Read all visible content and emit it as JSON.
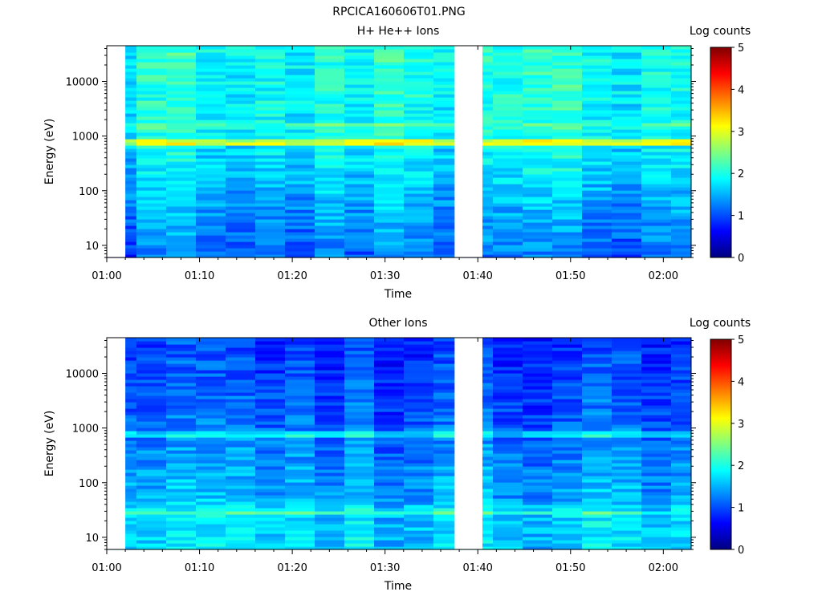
{
  "figure": {
    "title": "RPCICA160606T01.PNG"
  },
  "chart_data": [
    {
      "type": "heatmap",
      "title": "H+ He++ Ions",
      "xlabel": "Time",
      "ylabel": "Energy (eV)",
      "x_ticks": [
        "01:00",
        "01:10",
        "01:20",
        "01:30",
        "01:40",
        "01:50",
        "02:00"
      ],
      "y_ticks": [
        "10",
        "100",
        "1000",
        "10000"
      ],
      "y_scale": "log",
      "xlim": [
        "01:00",
        "02:03"
      ],
      "ylim": [
        6,
        45000
      ],
      "data_gaps": [
        [
          "01:00",
          "01:02"
        ],
        [
          "01:37.5",
          "01:40.5"
        ]
      ],
      "bands": [
        {
          "energy": 1550,
          "level": 2.3
        },
        {
          "energy": 750,
          "level": 3.1
        }
      ],
      "colorbar": {
        "label": "Log counts",
        "range": [
          0,
          5
        ],
        "ticks": [
          "0",
          "1",
          "2",
          "3",
          "4",
          "5"
        ],
        "colormap": "jet"
      }
    },
    {
      "type": "heatmap",
      "title": "Other Ions",
      "xlabel": "Time",
      "ylabel": "Energy (eV)",
      "x_ticks": [
        "01:00",
        "01:10",
        "01:20",
        "01:30",
        "01:40",
        "01:50",
        "02:00"
      ],
      "y_ticks": [
        "10",
        "100",
        "1000",
        "10000"
      ],
      "y_scale": "log",
      "xlim": [
        "01:00",
        "02:03"
      ],
      "ylim": [
        6,
        45000
      ],
      "data_gaps": [
        [
          "01:00",
          "01:02"
        ],
        [
          "01:37.5",
          "01:40.5"
        ]
      ],
      "bands": [
        {
          "energy": 750,
          "level": 1.9
        },
        {
          "energy": 28,
          "level": 2.1
        }
      ],
      "colorbar": {
        "label": "Log counts",
        "range": [
          0,
          5
        ],
        "ticks": [
          "0",
          "1",
          "2",
          "3",
          "4",
          "5"
        ],
        "colormap": "jet"
      }
    }
  ]
}
